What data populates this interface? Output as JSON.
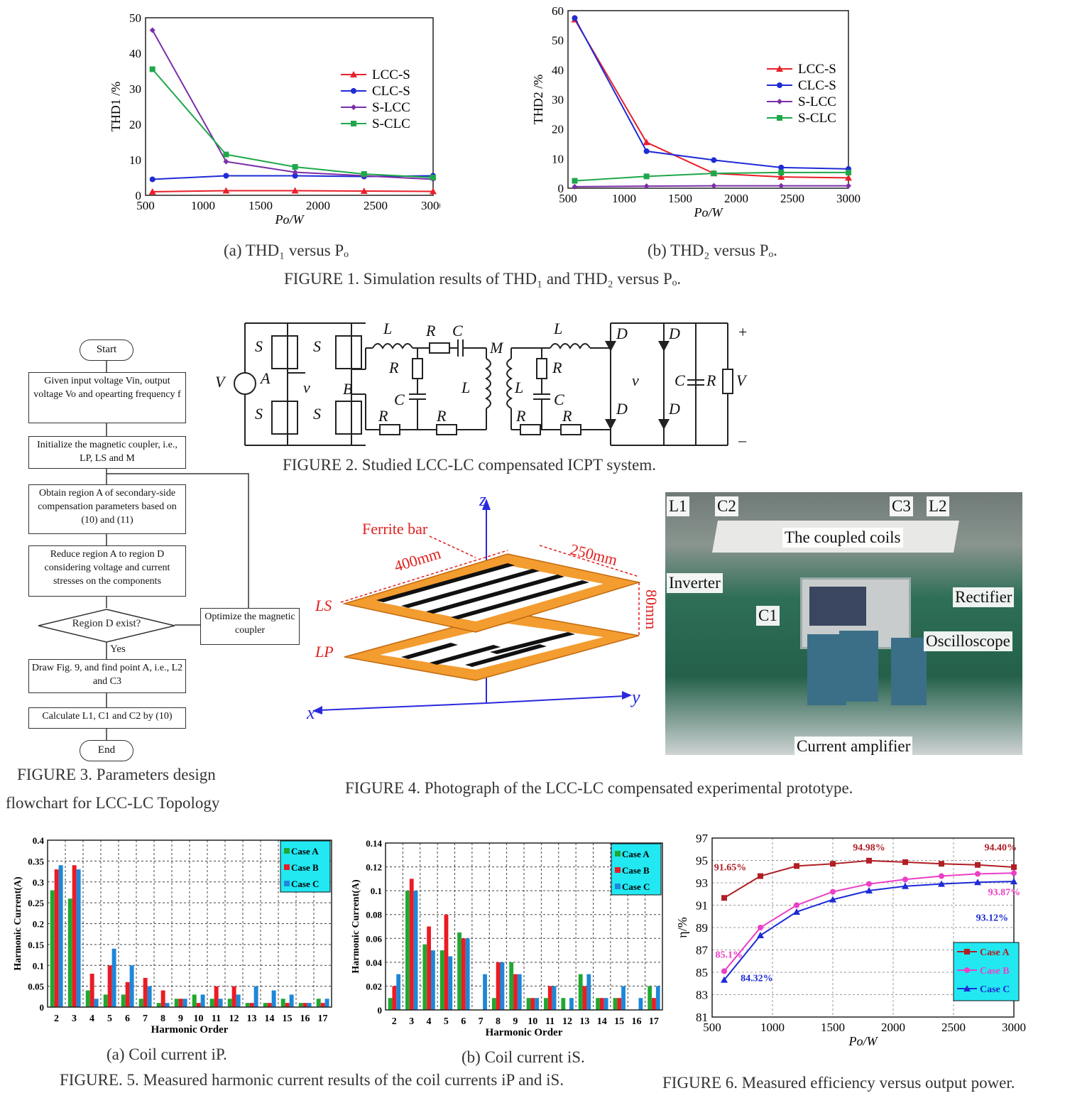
{
  "fig1": {
    "caption": "FIGURE 1. Simulation results of THD₁ and THD₂ versus Pₒ.",
    "sub_a": "(a) THD₁ versus Pₒ",
    "sub_b": "(b) THD₂ versus Pₒ."
  },
  "fig2": {
    "caption": "FIGURE 2. Studied LCC-LC compensated ICPT system."
  },
  "fig3": {
    "caption_line1": "FIGURE 3. Parameters design",
    "caption_line2": "flowchart for  LCC-LC Topology",
    "start": "Start",
    "step1": "Given input voltage Vin, output voltage Vo and opearting frequency f",
    "step2": "Initialize the magnetic coupler, i.e., LP, LS and M",
    "step3": "Obtain region A of secondary-side compensation parameters based on (10) and (11)",
    "step4": "Reduce region A to region D considering voltage and current stresses on the components",
    "decision": "Region D exist?",
    "optimize": "Optimize  the magnetic coupler",
    "yes": "Yes",
    "step5": "Draw Fig. 9, and find point A, i.e., L2 and C3",
    "step6": "Calculate L1, C1 and C2 by (10)",
    "end": "End"
  },
  "fig4": {
    "caption": "FIGURE 4. Photograph of the LCC-LC compensated experimental prototype.",
    "coil_labels": {
      "ferrite": "Ferrite bar",
      "len1": "400mm",
      "len2": "250mm",
      "len3": "80mm",
      "ls": "LS",
      "lp": "LP",
      "z": "z",
      "x": "x",
      "y": "y"
    },
    "photo_labels": {
      "l1": "L1",
      "c2": "C2",
      "c3": "C3",
      "l2": "L2",
      "coils": "The coupled coils",
      "inverter": "Inverter",
      "rectifier": "Rectifier",
      "c1": "C1",
      "osc": "Oscilloscope",
      "amp": "Current amplifier"
    }
  },
  "fig5": {
    "caption": "FIGURE. 5. Measured harmonic current results of the coil currents iP and iS.",
    "sub_a": "(a) Coil current iP.",
    "sub_b": "(b) Coil current iS."
  },
  "fig6": {
    "caption": "FIGURE 6. Measured efficiency versus output power."
  },
  "chart_data": [
    {
      "id": "fig1a",
      "type": "line",
      "xlabel": "Po/W",
      "ylabel": "THD1 /%",
      "xlim": [
        500,
        3000
      ],
      "ylim": [
        0,
        50
      ],
      "xticks": [
        500,
        1000,
        1500,
        2000,
        2500,
        3000
      ],
      "yticks": [
        0,
        10,
        20,
        30,
        40,
        50
      ],
      "legend": "center-right",
      "x": [
        560,
        1200,
        1800,
        2400,
        3000
      ],
      "series": [
        {
          "name": "LCC-S",
          "color": "#e8202a",
          "marker": "triangle",
          "values": [
            1,
            1.3,
            1.3,
            1.2,
            1.1
          ]
        },
        {
          "name": "CLC-S",
          "color": "#1e2bd6",
          "marker": "circle",
          "values": [
            4.5,
            5.5,
            5.5,
            5.3,
            5.5
          ]
        },
        {
          "name": "S-LCC",
          "color": "#7a2fa8",
          "marker": "diamond",
          "values": [
            46.5,
            9.5,
            6.5,
            5.5,
            4.5
          ]
        },
        {
          "name": "S-CLC",
          "color": "#1fa84a",
          "marker": "square",
          "values": [
            35.5,
            11.5,
            8,
            6,
            5
          ]
        }
      ]
    },
    {
      "id": "fig1b",
      "type": "line",
      "xlabel": "Po/W",
      "ylabel": "THD2 /%",
      "xlim": [
        500,
        3000
      ],
      "ylim": [
        0,
        60
      ],
      "xticks": [
        500,
        1000,
        1500,
        2000,
        2500,
        3000
      ],
      "yticks": [
        0,
        10,
        20,
        30,
        40,
        50,
        60
      ],
      "legend": "top-right",
      "x": [
        560,
        1200,
        1800,
        2400,
        3000
      ],
      "series": [
        {
          "name": "LCC-S",
          "color": "#e8202a",
          "marker": "triangle",
          "values": [
            57,
            15.5,
            5,
            3.8,
            3.5
          ]
        },
        {
          "name": "CLC-S",
          "color": "#1e2bd6",
          "marker": "circle",
          "values": [
            57.5,
            12.5,
            9.5,
            7,
            6.5
          ]
        },
        {
          "name": "S-LCC",
          "color": "#7a2fa8",
          "marker": "diamond",
          "values": [
            0.5,
            0.7,
            0.8,
            0.8,
            0.8
          ]
        },
        {
          "name": "S-CLC",
          "color": "#1fa84a",
          "marker": "square",
          "values": [
            2.5,
            4,
            5,
            5.3,
            5.3
          ]
        }
      ]
    },
    {
      "id": "fig5a",
      "type": "bar",
      "xlabel": "Harmonic Order",
      "ylabel": "Harmonic Current(A)",
      "ylim": [
        0,
        0.4
      ],
      "yticks": [
        "0",
        "0.05",
        "0.1",
        "0.15",
        "0.2",
        "0.25",
        "0.3",
        "0.35",
        "0.4"
      ],
      "legend": "top-right",
      "grid": true,
      "categories": [
        "2",
        "3",
        "4",
        "5",
        "6",
        "7",
        "8",
        "9",
        "10",
        "11",
        "12",
        "13",
        "14",
        "15",
        "16",
        "17"
      ],
      "series": [
        {
          "name": "Case A",
          "color": "#1fa830",
          "values": [
            0.28,
            0.26,
            0.04,
            0.03,
            0.03,
            0.02,
            0.01,
            0.02,
            0.03,
            0.02,
            0.02,
            0.01,
            0.01,
            0.02,
            0.01,
            0.02
          ]
        },
        {
          "name": "Case B",
          "color": "#ea1c24",
          "values": [
            0.33,
            0.34,
            0.08,
            0.1,
            0.06,
            0.07,
            0.04,
            0.02,
            0.01,
            0.05,
            0.05,
            0.01,
            0.01,
            0.01,
            0.01,
            0.01
          ]
        },
        {
          "name": "Case C",
          "color": "#1e87d8",
          "values": [
            0.34,
            0.33,
            0.02,
            0.14,
            0.1,
            0.05,
            0.01,
            0.02,
            0.03,
            0.02,
            0.03,
            0.05,
            0.04,
            0.03,
            0.01,
            0.02
          ]
        }
      ]
    },
    {
      "id": "fig5b",
      "type": "bar",
      "xlabel": "Harmonic Order",
      "ylabel": "Harmonic Current(A)",
      "ylim": [
        0,
        0.14
      ],
      "yticks": [
        "0",
        "0.02",
        "0.04",
        "0.06",
        "0.08",
        "0.1",
        "0.12",
        "0.14"
      ],
      "legend": "top-right",
      "grid": true,
      "categories": [
        "2",
        "3",
        "4",
        "5",
        "6",
        "7",
        "8",
        "9",
        "10",
        "11",
        "12",
        "13",
        "14",
        "15",
        "16",
        "17"
      ],
      "series": [
        {
          "name": "Case A",
          "color": "#1fa830",
          "values": [
            0.01,
            0.1,
            0.055,
            0.05,
            0.065,
            0,
            0.01,
            0.04,
            0.01,
            0.01,
            0.01,
            0.03,
            0.01,
            0.01,
            0,
            0.02
          ]
        },
        {
          "name": "Case B",
          "color": "#ea1c24",
          "values": [
            0.02,
            0.11,
            0.07,
            0.08,
            0.06,
            0,
            0.04,
            0.03,
            0.01,
            0.02,
            0,
            0.02,
            0.01,
            0.01,
            0,
            0.01
          ]
        },
        {
          "name": "Case C",
          "color": "#1e87d8",
          "values": [
            0.03,
            0.1,
            0.05,
            0.045,
            0.06,
            0.03,
            0.04,
            0.03,
            0.01,
            0.02,
            0.01,
            0.03,
            0.01,
            0.02,
            0.01,
            0.02
          ]
        }
      ]
    },
    {
      "id": "fig6",
      "type": "line",
      "xlabel": "Po/W",
      "ylabel": "η/%",
      "xlim": [
        500,
        3000
      ],
      "ylim": [
        81,
        97
      ],
      "xticks": [
        500,
        1000,
        1500,
        2000,
        2500,
        3000
      ],
      "yticks": [
        81,
        83,
        85,
        87,
        89,
        91,
        93,
        95,
        97
      ],
      "legend": "bottom-right",
      "grid": true,
      "x": [
        600,
        900,
        1200,
        1500,
        1800,
        2100,
        2400,
        2700,
        3000
      ],
      "series": [
        {
          "name": "Case A",
          "color": "#b01f24",
          "marker": "square",
          "values": [
            91.65,
            93.6,
            94.5,
            94.7,
            94.98,
            94.85,
            94.7,
            94.6,
            94.4
          ]
        },
        {
          "name": "Case B",
          "color": "#ec3fc6",
          "marker": "circle",
          "values": [
            85.1,
            89.0,
            91.0,
            92.2,
            92.9,
            93.3,
            93.6,
            93.8,
            93.87
          ]
        },
        {
          "name": "Case C",
          "color": "#1e2bd6",
          "marker": "triangle",
          "values": [
            84.32,
            88.3,
            90.4,
            91.5,
            92.3,
            92.7,
            92.9,
            93.05,
            93.12
          ]
        }
      ],
      "annotations": [
        "91.65%",
        "94.98%",
        "94.40%",
        "85.1%",
        "93.87%",
        "93.12%",
        "84.32%"
      ]
    }
  ]
}
